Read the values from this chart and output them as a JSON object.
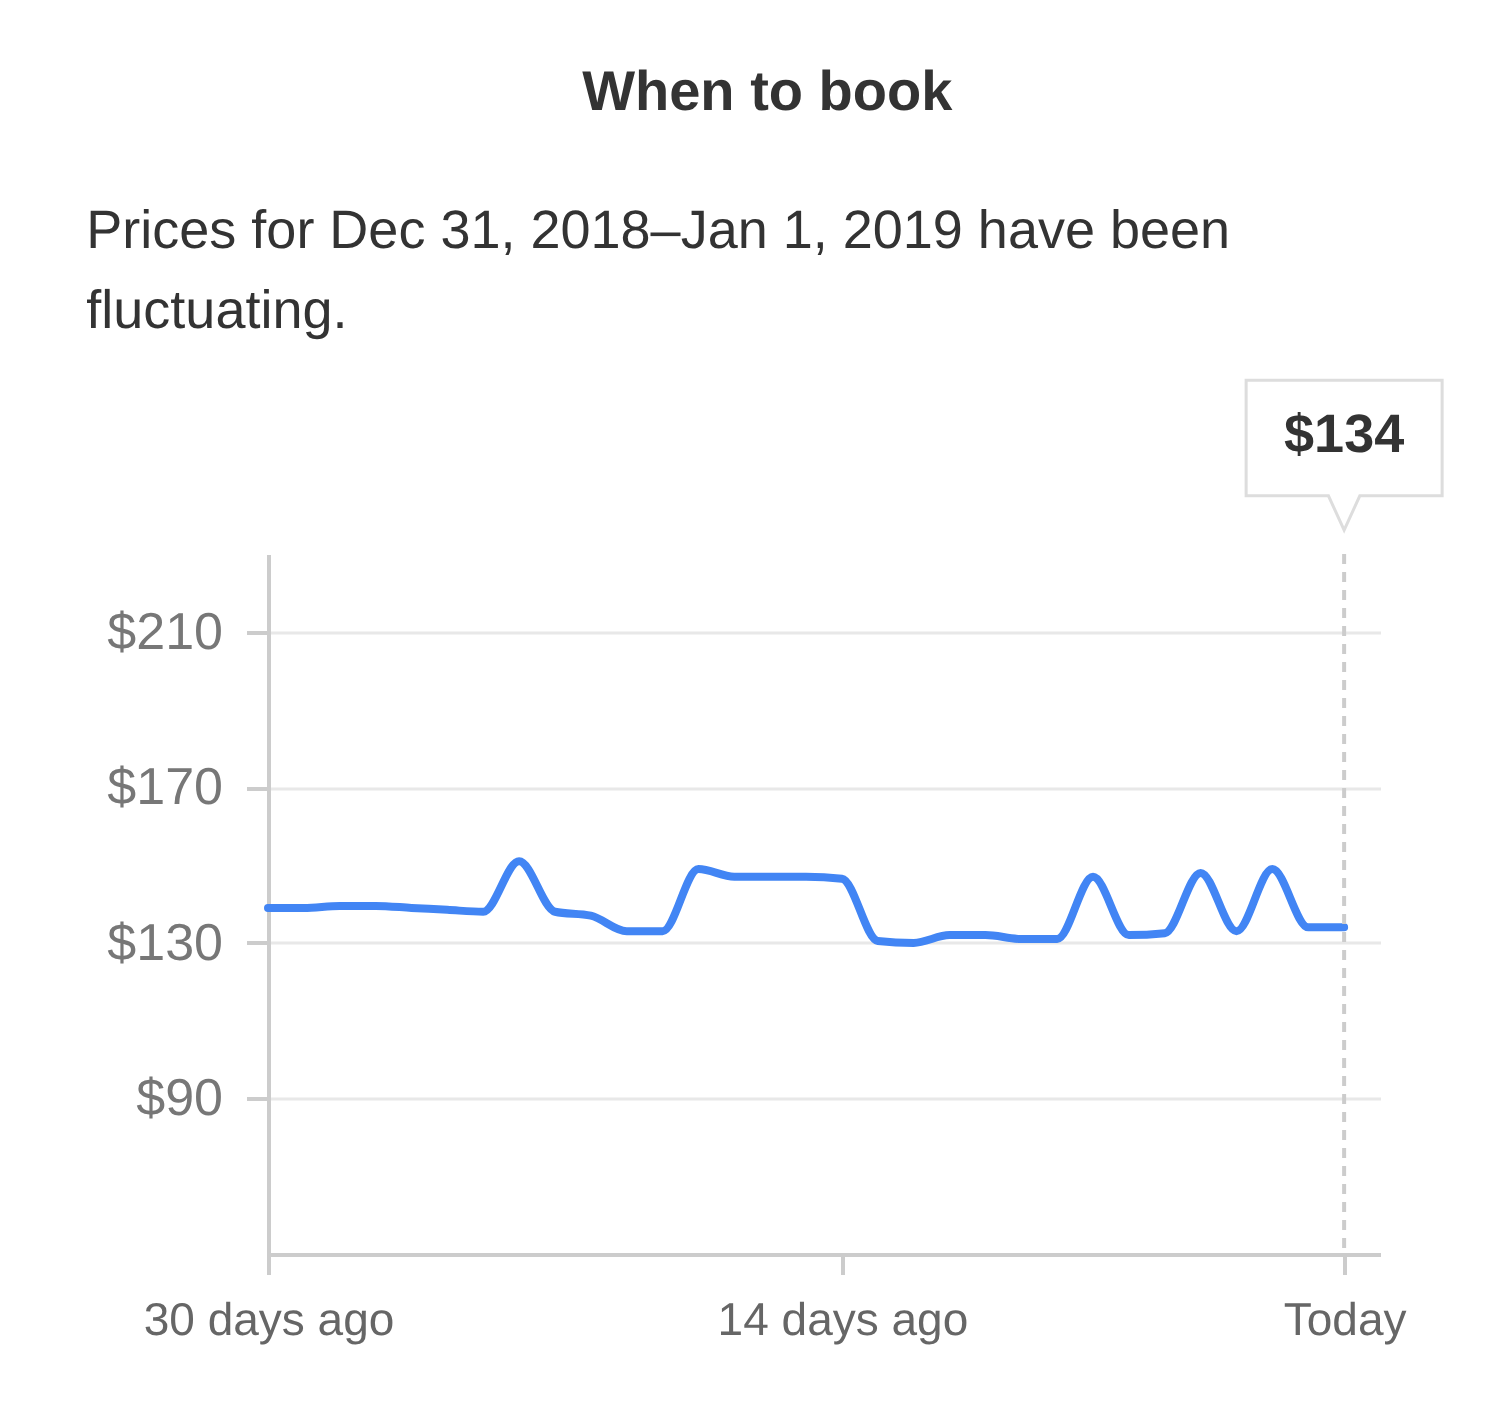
{
  "chart_data": {
    "type": "line",
    "title": "When to book",
    "subtitle": "Prices for Dec 31, 2018–Jan 1, 2019 have been fluctuating.",
    "x": [
      30,
      29,
      28,
      27,
      26,
      25,
      24,
      23,
      22,
      21,
      20,
      19,
      18,
      17,
      16,
      15,
      14,
      13,
      12,
      11,
      10,
      9,
      8,
      7,
      6,
      5,
      4,
      3,
      2,
      1,
      0
    ],
    "series": [
      {
        "color": "#4285f4",
        "values": [
          139,
          139,
          139.5,
          139.5,
          139,
          138.5,
          138,
          151,
          138,
          137,
          133,
          133,
          149,
          147,
          147,
          147,
          146.5,
          130.5,
          130,
          132,
          132,
          131,
          131,
          147,
          132,
          132.5,
          148,
          133,
          149,
          134,
          134
        ]
      }
    ],
    "xlim": [
      30,
      -1
    ],
    "xticks": [
      {
        "value": 30,
        "label": "30 days ago"
      },
      {
        "value": 14,
        "label": "14 days ago"
      },
      {
        "value": 0,
        "label": "Today"
      }
    ],
    "ylim": [
      50,
      230
    ],
    "yticks": [
      {
        "value": 90,
        "label": "$90"
      },
      {
        "value": 130,
        "label": "$130"
      },
      {
        "value": 170,
        "label": "$170"
      },
      {
        "value": 210,
        "label": "$210"
      }
    ],
    "grid": "y",
    "line_style": "solid",
    "ref_lines": [
      {
        "axis": "x",
        "value": 0,
        "color": "#cccccc",
        "line_style": "dashed"
      }
    ],
    "annotations": [
      "$134"
    ]
  }
}
